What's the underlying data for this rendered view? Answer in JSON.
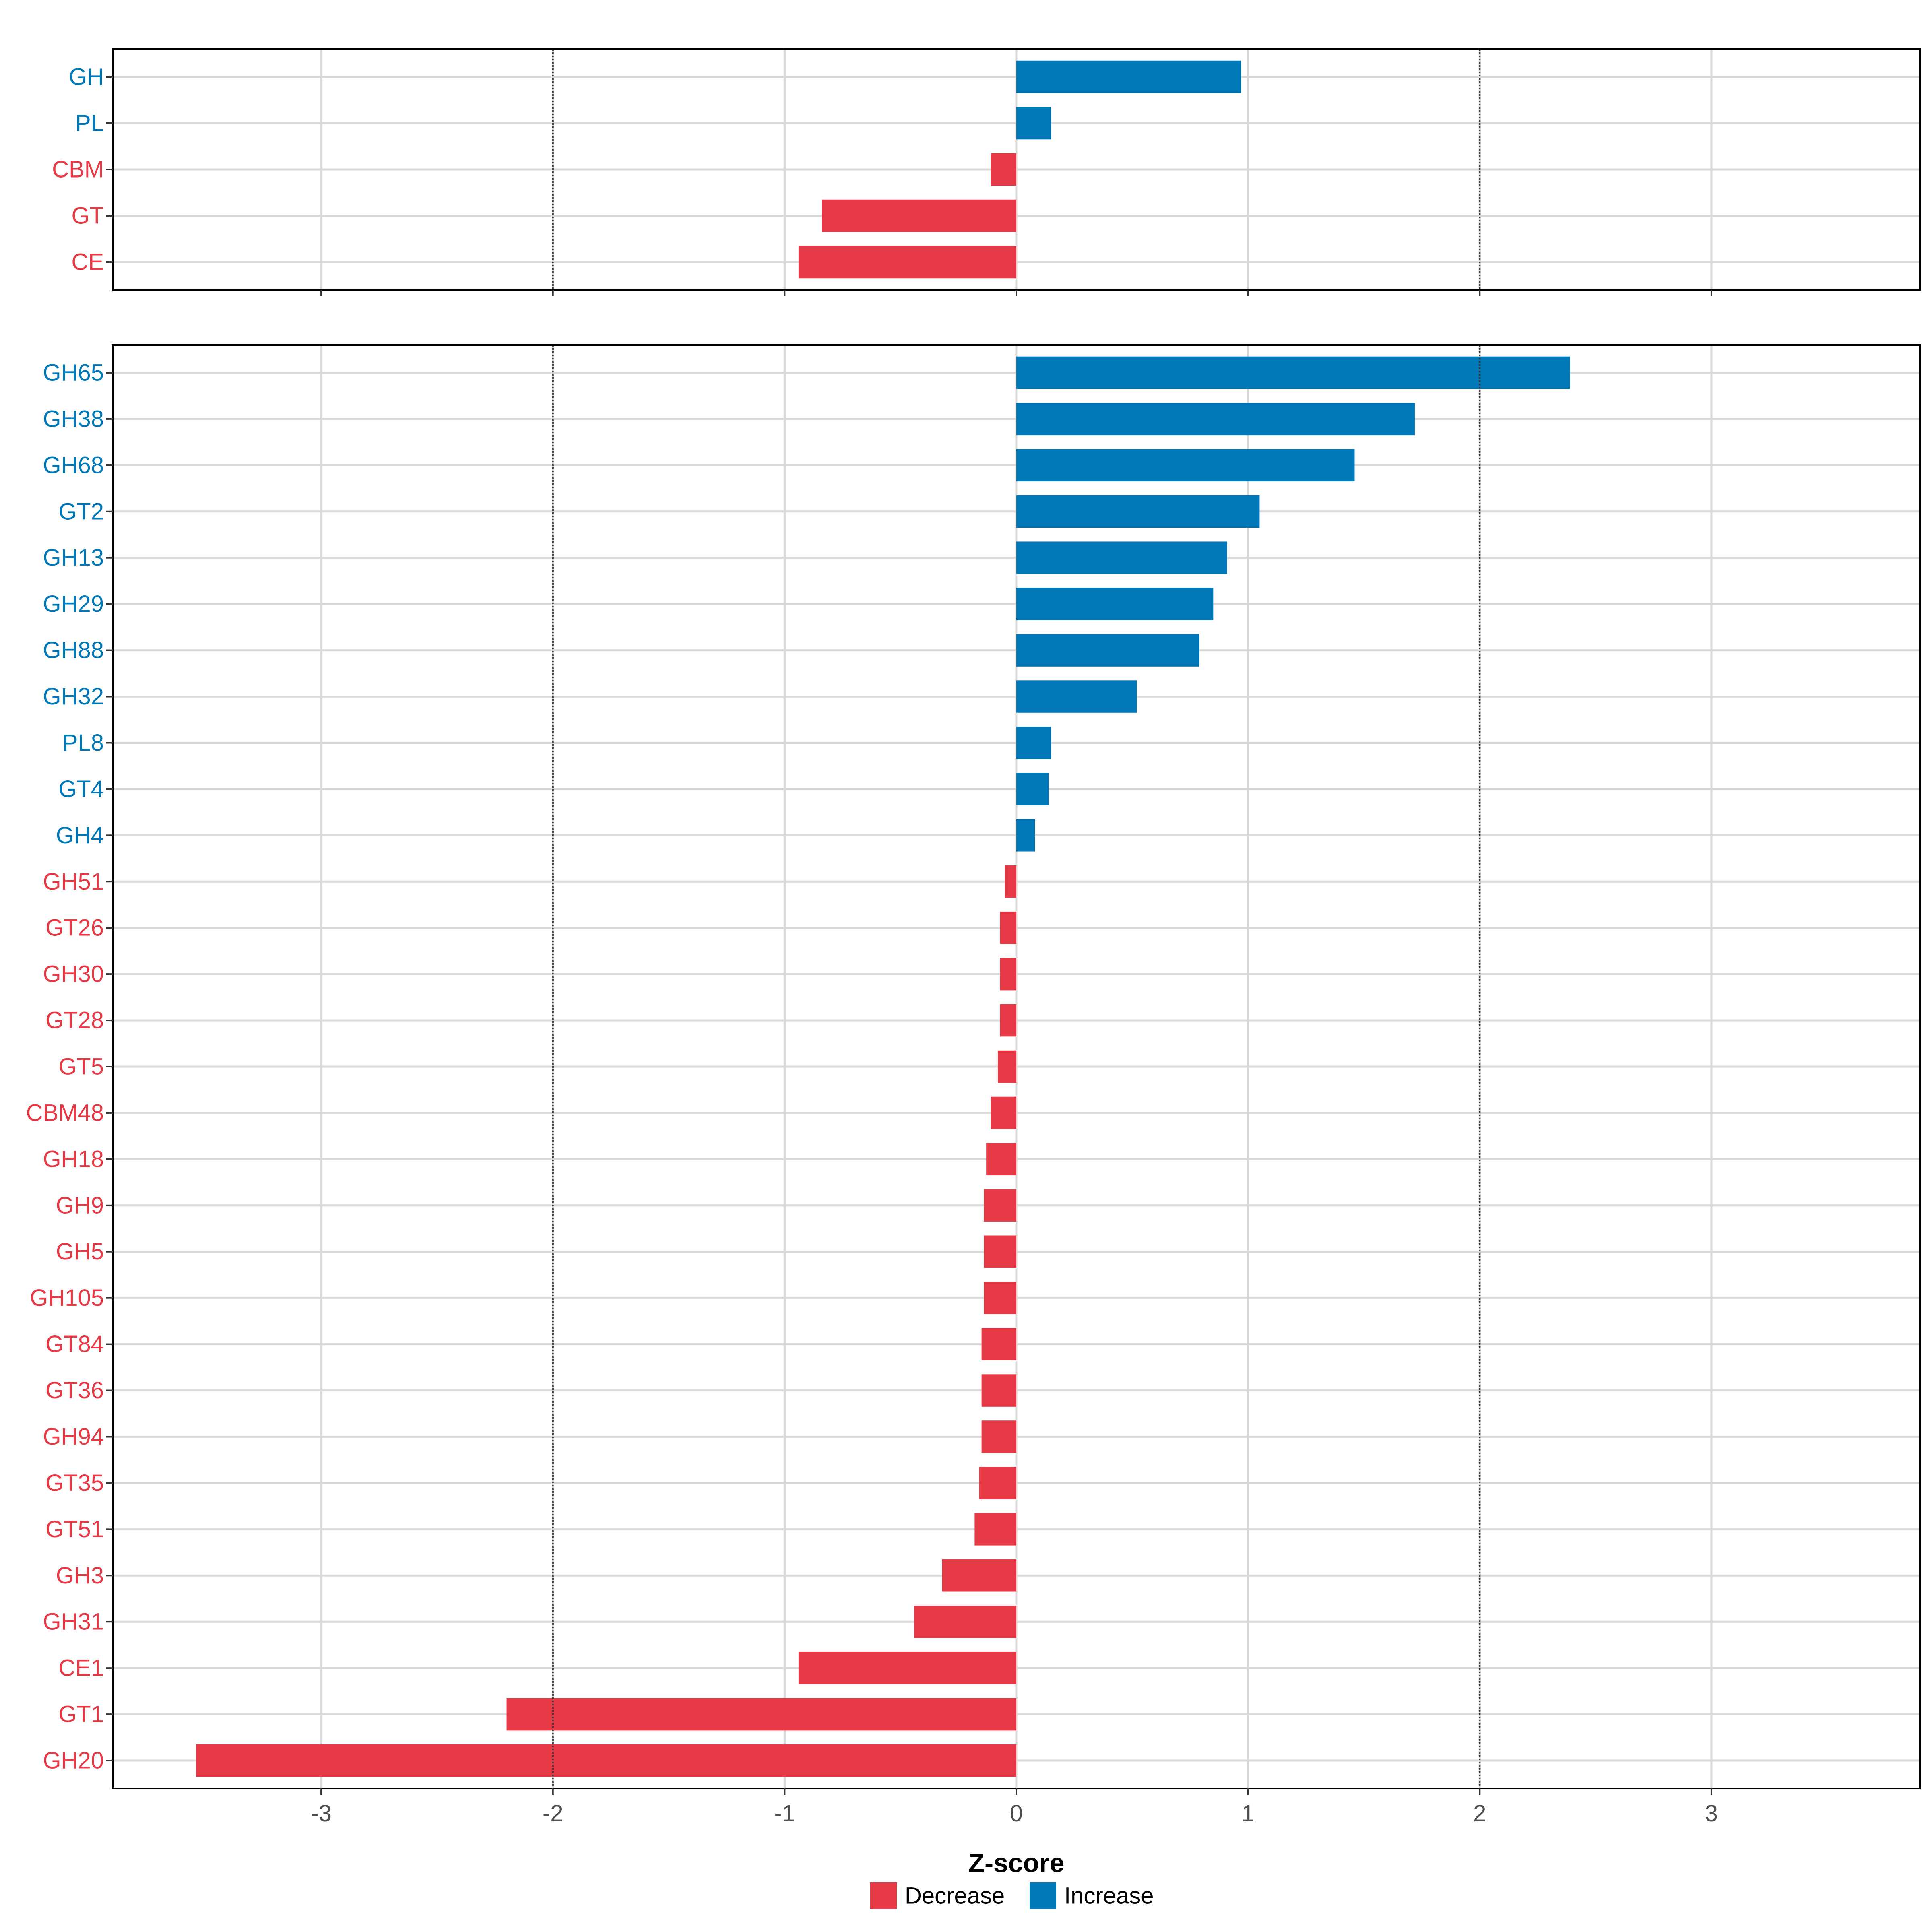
{
  "chart_data": {
    "type": "bar",
    "orientation": "horizontal",
    "xlabel": "Z-score",
    "xlim": [
      -3.9,
      3.9
    ],
    "x_ticks": [
      -3,
      -2,
      -1,
      0,
      1,
      2,
      3
    ],
    "x_tick_labels": [
      "-3",
      "-2",
      "-1",
      "0",
      "1",
      "2",
      "3"
    ],
    "reference_lines": [
      -2,
      2
    ],
    "colors": {
      "Decrease": "#E63946",
      "Increase": "#0077B6"
    },
    "legend": {
      "position": "bottom",
      "entries": [
        {
          "label": "Decrease",
          "color": "#E63946"
        },
        {
          "label": "Increase",
          "color": "#0077B6"
        }
      ]
    },
    "panels": [
      {
        "name": "top",
        "categories": [
          "GH",
          "PL",
          "CBM",
          "GT",
          "CE"
        ],
        "values": [
          0.97,
          0.15,
          -0.11,
          -0.84,
          -0.94
        ],
        "groups": [
          "Increase",
          "Increase",
          "Decrease",
          "Decrease",
          "Decrease"
        ]
      },
      {
        "name": "bottom",
        "categories": [
          "GH65",
          "GH38",
          "GH68",
          "GT2",
          "GH13",
          "GH29",
          "GH88",
          "GH32",
          "PL8",
          "GT4",
          "GH4",
          "GH51",
          "GT26",
          "GH30",
          "GT28",
          "GT5",
          "CBM48",
          "GH18",
          "GH9",
          "GH5",
          "GH105",
          "GT84",
          "GT36",
          "GH94",
          "GT35",
          "GT51",
          "GH3",
          "GH31",
          "CE1",
          "GT1",
          "GH20"
        ],
        "values": [
          2.39,
          1.72,
          1.46,
          1.05,
          0.91,
          0.85,
          0.79,
          0.52,
          0.15,
          0.14,
          0.08,
          -0.05,
          -0.07,
          -0.07,
          -0.07,
          -0.08,
          -0.11,
          -0.13,
          -0.14,
          -0.14,
          -0.14,
          -0.15,
          -0.15,
          -0.15,
          -0.16,
          -0.18,
          -0.32,
          -0.44,
          -0.94,
          -2.2,
          -3.54
        ],
        "groups": [
          "Increase",
          "Increase",
          "Increase",
          "Increase",
          "Increase",
          "Increase",
          "Increase",
          "Increase",
          "Increase",
          "Increase",
          "Increase",
          "Decrease",
          "Decrease",
          "Decrease",
          "Decrease",
          "Decrease",
          "Decrease",
          "Decrease",
          "Decrease",
          "Decrease",
          "Decrease",
          "Decrease",
          "Decrease",
          "Decrease",
          "Decrease",
          "Decrease",
          "Decrease",
          "Decrease",
          "Decrease",
          "Decrease",
          "Decrease"
        ]
      }
    ]
  }
}
